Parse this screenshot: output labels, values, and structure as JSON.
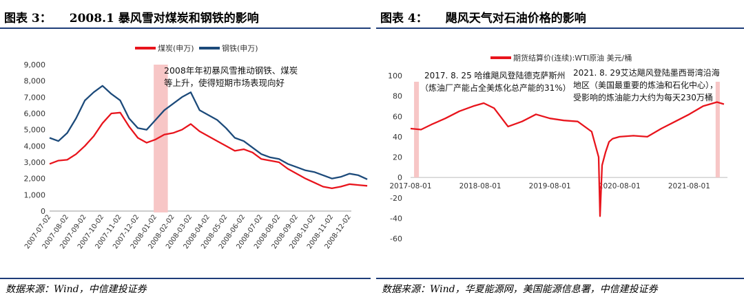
{
  "colors": {
    "coal": "#e8141c",
    "steel": "#1c4a7a",
    "oil": "#e8141c",
    "highlight": "#f7c6c6",
    "rule": "#1d3c78"
  },
  "left": {
    "title_num": "图表 3：",
    "title_text": "2008.1 暴风雪对煤炭和钢铁的影响",
    "annotation_line1": "2008年年初暴风雪推动钢铁、煤炭",
    "annotation_line2": "等上升，使得短期市场表现向好",
    "source": "数据来源：Wind，中信建投证券"
  },
  "right": {
    "title_num": "图表 4：",
    "title_text": "飓风天气对石油价格的影响",
    "annotation1_line1": "2017. 8. 25 哈维飓风登陆德克萨斯州",
    "annotation1_line2": "（炼油厂产能占全美炼化总产能的31%）",
    "annotation2_line1": "2021. 8. 29艾达飓风登陆墨西哥湾沿海",
    "annotation2_line2": "地区（美国最重要的炼油和石化中心），",
    "annotation2_line3": "受影响的炼油能力大约为每天230万桶",
    "source": "数据来源：Wind，华夏能源网，美国能源信息署，中信建投证券"
  },
  "chart_data": [
    {
      "type": "line",
      "title": "2008.1 暴风雪对煤炭和钢铁的影响",
      "legend_position": "top-center",
      "ylim": [
        0,
        9000
      ],
      "yticks": [
        0,
        1000,
        2000,
        3000,
        4000,
        5000,
        6000,
        7000,
        8000,
        9000
      ],
      "ytick_labels": [
        "0",
        "1,000",
        "2,000",
        "3,000",
        "4,000",
        "5,000",
        "6,000",
        "7,000",
        "8,000",
        "9,000"
      ],
      "x_tick_labels": [
        "2007-07-02",
        "2007-08-02",
        "2007-09-02",
        "2007-10-02",
        "2007-11-02",
        "2007-12-02",
        "2008-01-02",
        "2008-02-02",
        "2008-03-02",
        "2008-04-02",
        "2008-05-02",
        "2008-06-02",
        "2008-07-02",
        "2008-08-02",
        "2008-09-02",
        "2008-10-02",
        "2008-11-02",
        "2008-12-02"
      ],
      "x": [
        0,
        0.5,
        1,
        1.5,
        2,
        2.5,
        3,
        3.5,
        4,
        4.5,
        5,
        5.5,
        6,
        6.5,
        7,
        7.5,
        8,
        8.5,
        9,
        9.5,
        10,
        10.5,
        11,
        11.5,
        12,
        12.5,
        13,
        13.5,
        14,
        14.5,
        15,
        15.5,
        16,
        16.5,
        17,
        17.5,
        18
      ],
      "series": [
        {
          "name": "煤炭(申万)",
          "values": [
            2900,
            3100,
            3150,
            3500,
            4000,
            4600,
            5400,
            6000,
            6050,
            5200,
            4500,
            4200,
            4400,
            4700,
            4800,
            5000,
            5350,
            4900,
            4600,
            4300,
            4000,
            3700,
            3800,
            3600,
            3200,
            3100,
            3000,
            2600,
            2300,
            2000,
            1750,
            1500,
            1400,
            1500,
            1650,
            1600,
            1550
          ]
        },
        {
          "name": "钢铁(申万)",
          "values": [
            4500,
            4300,
            4800,
            5700,
            6800,
            7300,
            7700,
            7200,
            6800,
            5700,
            5100,
            5000,
            5600,
            6200,
            6600,
            7000,
            7300,
            6200,
            5900,
            5600,
            5100,
            4500,
            4300,
            3900,
            3500,
            3300,
            3200,
            2900,
            2700,
            2500,
            2400,
            2200,
            2000,
            2100,
            2300,
            2200,
            1950
          ]
        }
      ],
      "highlight_x_range": [
        5.9,
        6.7
      ],
      "annotation": "2008年年初暴风雪推动钢铁、煤炭等上升，使得短期市场表现向好"
    },
    {
      "type": "line",
      "title": "飓风天气对石油价格的影响",
      "legend_position": "top-center",
      "ylim": [
        -60,
        100
      ],
      "yticks": [
        -60,
        -40,
        -20,
        0,
        20,
        40,
        60,
        80,
        100
      ],
      "ytick_labels": [
        "-60",
        "-40",
        "-20",
        "0",
        "20",
        "40",
        "60",
        "80",
        "100"
      ],
      "x_tick_labels": [
        "2017-08-01",
        "2018-08-01",
        "2019-08-01",
        "2020-08-01",
        "2021-08-01"
      ],
      "x": [
        0,
        0.15,
        0.3,
        0.5,
        0.7,
        0.9,
        1.05,
        1.2,
        1.4,
        1.6,
        1.8,
        2.0,
        2.2,
        2.4,
        2.6,
        2.7,
        2.72,
        2.75,
        2.8,
        2.85,
        2.9,
        3.0,
        3.2,
        3.4,
        3.6,
        3.8,
        4.0,
        4.2,
        4.4,
        4.5
      ],
      "series": [
        {
          "name": "期货结算价(连续):WTI原油 美元/桶",
          "values": [
            48,
            47,
            52,
            58,
            65,
            70,
            73,
            68,
            50,
            55,
            62,
            58,
            56,
            55,
            45,
            20,
            -38,
            12,
            25,
            35,
            38,
            40,
            41,
            40,
            48,
            55,
            62,
            70,
            74,
            72
          ]
        }
      ],
      "highlight_x_ranges": [
        [
          0.05,
          0.12
        ],
        [
          4.38,
          4.44
        ]
      ],
      "annotations": [
        "2017. 8. 25 哈维飓风登陆德克萨斯州（炼油厂产能占全美炼化总产能的31%）",
        "2021. 8. 29艾达飓风登陆墨西哥湾沿海地区（美国最重要的炼油和石化中心），受影响的炼油能力大约为每天230万桶"
      ]
    }
  ]
}
